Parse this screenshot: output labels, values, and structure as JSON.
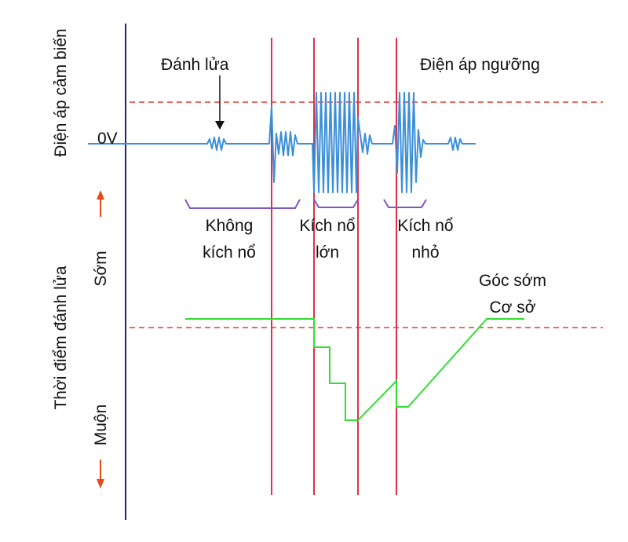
{
  "texts": {
    "ylabel_top": "Điện áp cảm biến",
    "ylabel_bottom": "Thời điểm đánh lửa",
    "zero_v": "0V",
    "ignition": "Đánh lửa",
    "threshold": "Điện áp ngưỡng",
    "no_knock_1": "Không",
    "no_knock_2": "kích nổ",
    "big_knock_1": "Kích nổ",
    "big_knock_2": "lớn",
    "small_knock_1": "Kích nổ",
    "small_knock_2": "nhỏ",
    "early": "Sớm",
    "late": "Muộn",
    "base_advance_1": "Góc sớm",
    "base_advance_2": "Cơ sở"
  },
  "colors": {
    "axis": "#1a237e",
    "signal": "#3b8fd9",
    "threshold": "#e53935",
    "marker": "#e0304a",
    "timing": "#33dd33",
    "bracket": "#7e57c2",
    "arrow": "#e64a19"
  }
}
